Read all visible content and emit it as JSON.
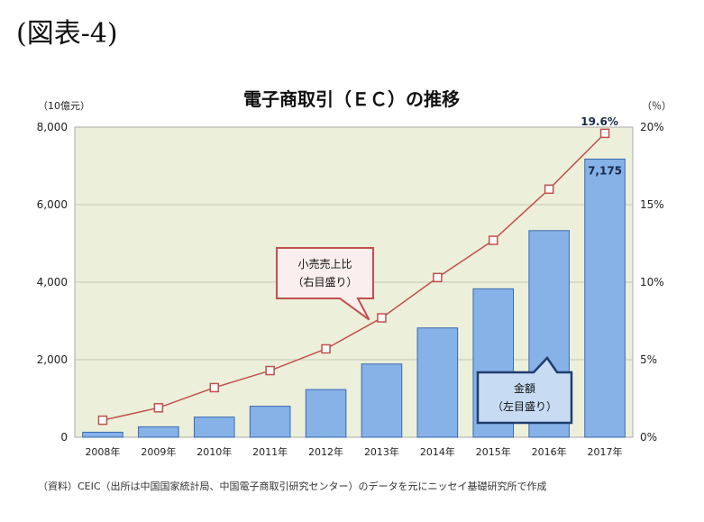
{
  "figure_label": "(図表-4)",
  "source_note": "（資料）CEIC（出所は中国国家統計局、中国電子商取引研究センター）のデータを元にニッセイ基礎研究所で作成",
  "colors": {
    "plot_bg": "#ecefda",
    "bar_fill": "#86b2e8",
    "bar_stroke": "#3a6ab0",
    "line": "#c0504d",
    "callout_red_border": "#c0504d",
    "callout_red_fill": "#fbeeee",
    "callout_blue_border": "#1f3d6e",
    "callout_blue_fill": "#c7dcf3"
  },
  "chart_data": {
    "type": "bar",
    "title": "電子商取引（ＥＣ）の推移",
    "categories": [
      "2008年",
      "2009年",
      "2010年",
      "2011年",
      "2012年",
      "2013年",
      "2014年",
      "2015年",
      "2016年",
      "2017年"
    ],
    "series": [
      {
        "name": "金額",
        "axis": "left",
        "type": "bar",
        "values": [
          130,
          270,
          520,
          800,
          1230,
          1890,
          2820,
          3830,
          5330,
          7175
        ]
      },
      {
        "name": "小売売上比",
        "axis": "right",
        "type": "line",
        "values": [
          1.1,
          1.9,
          3.2,
          4.3,
          5.7,
          7.7,
          10.3,
          12.7,
          16.0,
          19.6
        ]
      }
    ],
    "ylabel_left": "（10億元）",
    "ylabel_right": "（％）",
    "ylim_left": [
      0,
      8000
    ],
    "ylim_right": [
      0,
      20
    ],
    "yticks_left": [
      "0",
      "2,000",
      "4,000",
      "6,000",
      "8,000"
    ],
    "yticks_right": [
      "0%",
      "5%",
      "10%",
      "15%",
      "20%"
    ],
    "data_labels": {
      "bar_last": "7,175",
      "line_last": "19.6%"
    },
    "callouts": {
      "line": [
        "小売売上比",
        "（右目盛り）"
      ],
      "bar": [
        "金額",
        "（左目盛り）"
      ]
    },
    "grid": true
  }
}
